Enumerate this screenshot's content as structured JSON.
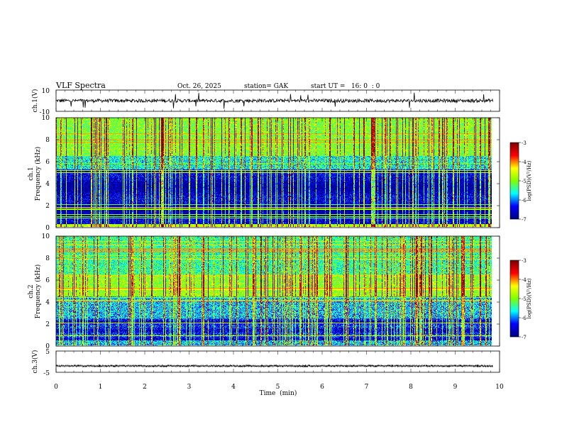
{
  "header": {
    "title": "VLF Spectra",
    "date": "Oct. 26, 2025",
    "station": "station= GAK",
    "start_ut": "start UT =   16: 0  : 0"
  },
  "chart_data": [
    {
      "type": "line",
      "name": "ch1-waveform",
      "ylabel": "ch.1(V)",
      "ylim": [
        -10,
        10
      ],
      "yticks": [
        "10",
        "-10"
      ],
      "xlim": [
        0,
        10
      ],
      "baseline": 0
    },
    {
      "type": "heatmap",
      "name": "ch1-spectrogram",
      "ylabel": "ch.1 Frequency (kHz)",
      "ylim": [
        0,
        10
      ],
      "yticks": [
        "0",
        "2",
        "4",
        "6",
        "8",
        "10"
      ],
      "xlim": [
        0,
        9.85
      ],
      "colorbar": {
        "label": "log(PSD)(V²/Hz)",
        "range": [
          -7,
          -3
        ],
        "ticks": [
          "-3",
          "-4",
          "-5",
          "-6",
          "-7"
        ]
      }
    },
    {
      "type": "heatmap",
      "name": "ch2-spectrogram",
      "ylabel": "ch.2 Frequency (kHz)",
      "ylim": [
        0,
        10
      ],
      "yticks": [
        "0",
        "2",
        "4",
        "6",
        "8",
        "10"
      ],
      "xlim": [
        0,
        9.85
      ],
      "colorbar": {
        "label": "log(PSD)(V²/Hz)",
        "range": [
          -7,
          -3
        ],
        "ticks": [
          "-3",
          "-4",
          "-5",
          "-6",
          "-7"
        ]
      }
    },
    {
      "type": "line",
      "name": "ch3-waveform",
      "ylabel": "ch.3(V)",
      "ylim": [
        -5,
        5
      ],
      "yticks": [
        "5",
        "-5"
      ],
      "xlim": [
        0,
        10
      ],
      "baseline": -2
    }
  ],
  "xaxis": {
    "label": "Time  (min)",
    "ticks": [
      "0",
      "1",
      "2",
      "3",
      "4",
      "5",
      "6",
      "7",
      "8",
      "9",
      "10"
    ]
  },
  "colormap": [
    "#00007f",
    "#0000ff",
    "#00ffff",
    "#7fff00",
    "#ffff00",
    "#ff0000",
    "#7f0000"
  ]
}
